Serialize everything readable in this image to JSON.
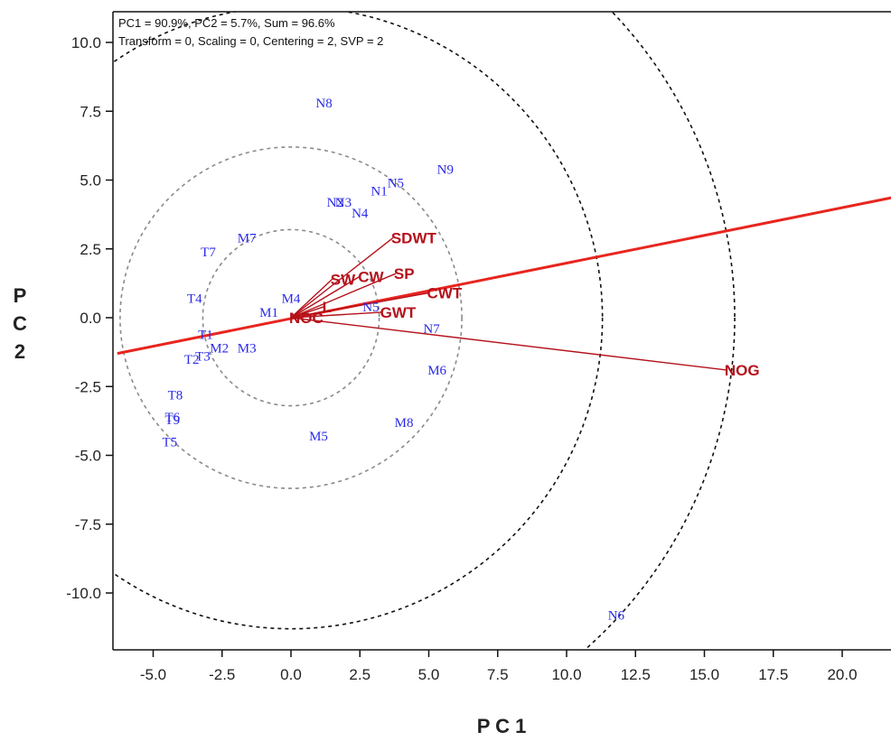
{
  "chart_data": {
    "type": "scatter",
    "subtype": "PCA biplot",
    "info_lines": [
      "PC1 = 90.9%, PC2 = 5.7%, Sum = 96.6%",
      "Transform = 0, Scaling = 0, Centering = 2, SVP = 2"
    ],
    "xlabel": "P C 1",
    "ylabel_chars": [
      "P",
      "C",
      "2"
    ],
    "xlim": [
      -6.3,
      22
    ],
    "ylim": [
      -12.2,
      11.1
    ],
    "xticks": [
      "-5.0",
      "-2.5",
      "0.0",
      "2.5",
      "5.0",
      "7.5",
      "10.0",
      "12.5",
      "15.0",
      "17.5",
      "20.0"
    ],
    "xtick_values": [
      -5,
      -2.5,
      0,
      2.5,
      5,
      7.5,
      10,
      12.5,
      15,
      17.5,
      20
    ],
    "yticks": [
      "10.0",
      "7.5",
      "5.0",
      "2.5",
      "0.0",
      "-2.5",
      "-5.0",
      "-7.5",
      "-10.0"
    ],
    "ytick_values": [
      10,
      7.5,
      5,
      2.5,
      0,
      -2.5,
      -5,
      -7.5,
      -10
    ],
    "grid": false,
    "circle_radii": [
      3.2,
      6.2,
      11.3,
      16.1
    ],
    "circle_styles": [
      "gray",
      "gray",
      "black",
      "black"
    ],
    "axis_line": {
      "from": [
        -6.3,
        -1.3
      ],
      "to": [
        22,
        4.4
      ],
      "color": "#e8251f"
    },
    "observations": [
      {
        "label": "N8",
        "x": 1.2,
        "y": 7.8
      },
      {
        "label": "N9",
        "x": 5.6,
        "y": 5.4
      },
      {
        "label": "N5",
        "x": 3.8,
        "y": 4.9
      },
      {
        "label": "N1",
        "x": 3.2,
        "y": 4.6
      },
      {
        "label": "N2",
        "x": 1.6,
        "y": 4.2
      },
      {
        "label": "N3",
        "x": 1.9,
        "y": 4.2
      },
      {
        "label": "N4",
        "x": 2.5,
        "y": 3.8
      },
      {
        "label": "M7",
        "x": -1.6,
        "y": 2.9
      },
      {
        "label": "T7",
        "x": -3.0,
        "y": 2.4
      },
      {
        "label": "T4",
        "x": -3.5,
        "y": 0.7
      },
      {
        "label": "M4",
        "x": 0.0,
        "y": 0.7
      },
      {
        "label": "M1",
        "x": -0.8,
        "y": 0.2
      },
      {
        "label": "N5",
        "x": 2.9,
        "y": 0.4
      },
      {
        "label": "N7",
        "x": 5.1,
        "y": -0.4
      },
      {
        "label": "T1",
        "x": -3.1,
        "y": -0.6
      },
      {
        "label": "M2",
        "x": -2.6,
        "y": -1.1
      },
      {
        "label": "M3",
        "x": -1.6,
        "y": -1.1
      },
      {
        "label": "T2",
        "x": -3.6,
        "y": -1.5
      },
      {
        "label": "T3",
        "x": -3.2,
        "y": -1.4
      },
      {
        "label": "M6",
        "x": 5.3,
        "y": -1.9
      },
      {
        "label": "T8",
        "x": -4.2,
        "y": -2.8
      },
      {
        "label": "T6",
        "x": -4.3,
        "y": -3.6
      },
      {
        "label": "T9",
        "x": -4.3,
        "y": -3.7
      },
      {
        "label": "M8",
        "x": 4.1,
        "y": -3.8
      },
      {
        "label": "M5",
        "x": 1.0,
        "y": -4.3
      },
      {
        "label": "T5",
        "x": -4.4,
        "y": -4.5
      },
      {
        "label": "N6",
        "x": 11.8,
        "y": -10.8
      }
    ],
    "variables": [
      {
        "label": "SDWT",
        "x": 3.7,
        "y": 2.9
      },
      {
        "label": "SP",
        "x": 3.8,
        "y": 1.6
      },
      {
        "label": "CW",
        "x": 2.5,
        "y": 1.5
      },
      {
        "label": "SW",
        "x": 1.5,
        "y": 1.4
      },
      {
        "label": "CWT",
        "x": 5.0,
        "y": 0.9
      },
      {
        "label": "GWT",
        "x": 3.3,
        "y": 0.2
      },
      {
        "label": "L",
        "x": 1.2,
        "y": 0.4
      },
      {
        "label": "NOC",
        "x": 0.0,
        "y": 0.0
      },
      {
        "label": "NOG",
        "x": 15.8,
        "y": -1.9
      }
    ]
  }
}
